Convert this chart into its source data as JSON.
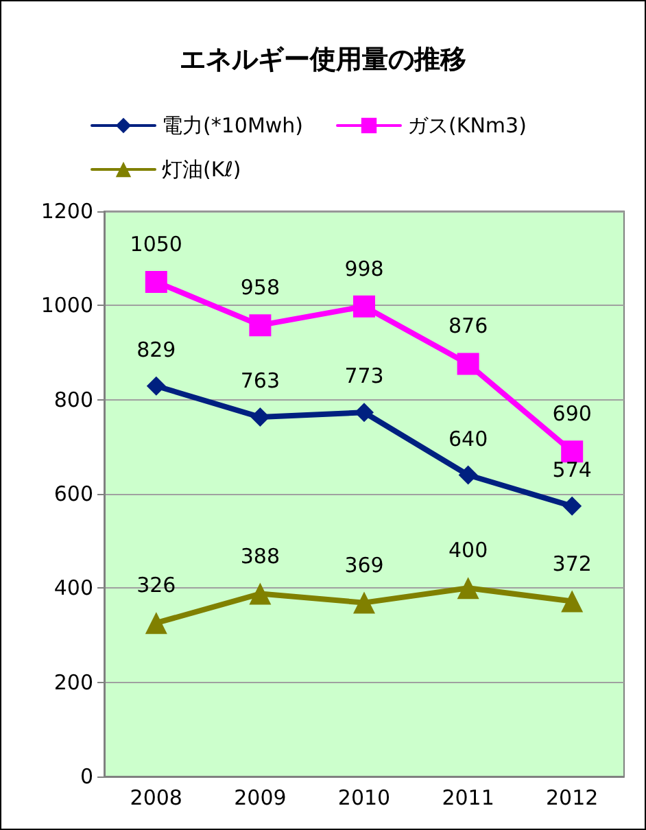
{
  "chart_data": {
    "type": "line",
    "title": "エネルギー使用量の推移",
    "categories": [
      "2008",
      "2009",
      "2010",
      "2011",
      "2012"
    ],
    "series": [
      {
        "name": "電力(*10Mwh)",
        "color": "#002080",
        "marker": "diamond",
        "values": [
          829,
          763,
          773,
          640,
          574
        ]
      },
      {
        "name": "ガス(KNm3)",
        "color": "#ff00ff",
        "marker": "square",
        "values": [
          1050,
          958,
          998,
          876,
          690
        ]
      },
      {
        "name": "灯油(Kℓ)",
        "color": "#808000",
        "marker": "triangle",
        "values": [
          326,
          388,
          369,
          400,
          372
        ]
      }
    ],
    "ylim": [
      0,
      1200
    ],
    "yticks": [
      0,
      200,
      400,
      600,
      800,
      1000,
      1200
    ],
    "grid": "y",
    "legend": "top",
    "data_labels": true,
    "line_style": "solid"
  }
}
